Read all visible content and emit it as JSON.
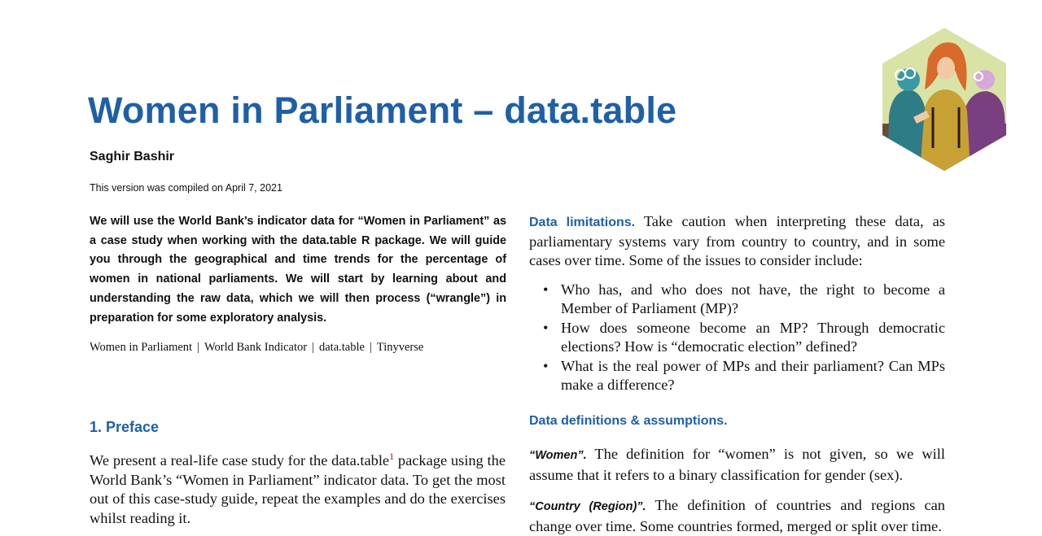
{
  "title": "Women in Parliament – data.table",
  "author": "Saghir Bashir",
  "compiled": "This version was compiled on April 7, 2021",
  "abstract": "We will use the World Bank’s indicator data for “Women in Parliament” as a case study when working with the data.table R package.  We will guide you through the geographical and time trends for the percentage of women in national parliaments.  We will start by learning about and understanding the raw data, which we will then process (“wrangle”) in preparation for some exploratory analysis.",
  "keywords": [
    "Women in Parliament",
    "World Bank Indicator",
    "data.table",
    "Tinyverse"
  ],
  "keyword_separator": "|",
  "preface": {
    "heading": "1.  Preface",
    "text_before": "We present a real-life case study for the data.table",
    "footnote": "1",
    "text_after": " package using the World Bank’s “Women in Parliament” indicator data.  To get the most out of this case-study guide, repeat the examples and do the exercises whilst reading it."
  },
  "limitations": {
    "heading": "Data limitations.",
    "text": " Take caution when interpreting these data, as parliamentary systems vary from country to country, and in some cases over time.  Some of the issues to consider include:",
    "bullets": [
      "Who has, and who does not have, the right to become a Member of Parliament (MP)?",
      "How does someone become an MP? Through democratic elections? How is “democratic election” defined?",
      "What is the real power of MPs and their parliament?  Can MPs make a difference?"
    ]
  },
  "definitions": {
    "heading": "Data definitions & assumptions.",
    "women_term": "“Women”.",
    "women_text": " The definition for “women” is not given, so we will assume that it refers to a binary classification for gender (sex).",
    "country_term": "“Country (Region)”.",
    "country_text": " The definition of countries and regions can change over time. Some countries formed, merged or split over time."
  },
  "colors": {
    "accent": "#1f5fa8",
    "footnote": "#8b1a1a"
  }
}
